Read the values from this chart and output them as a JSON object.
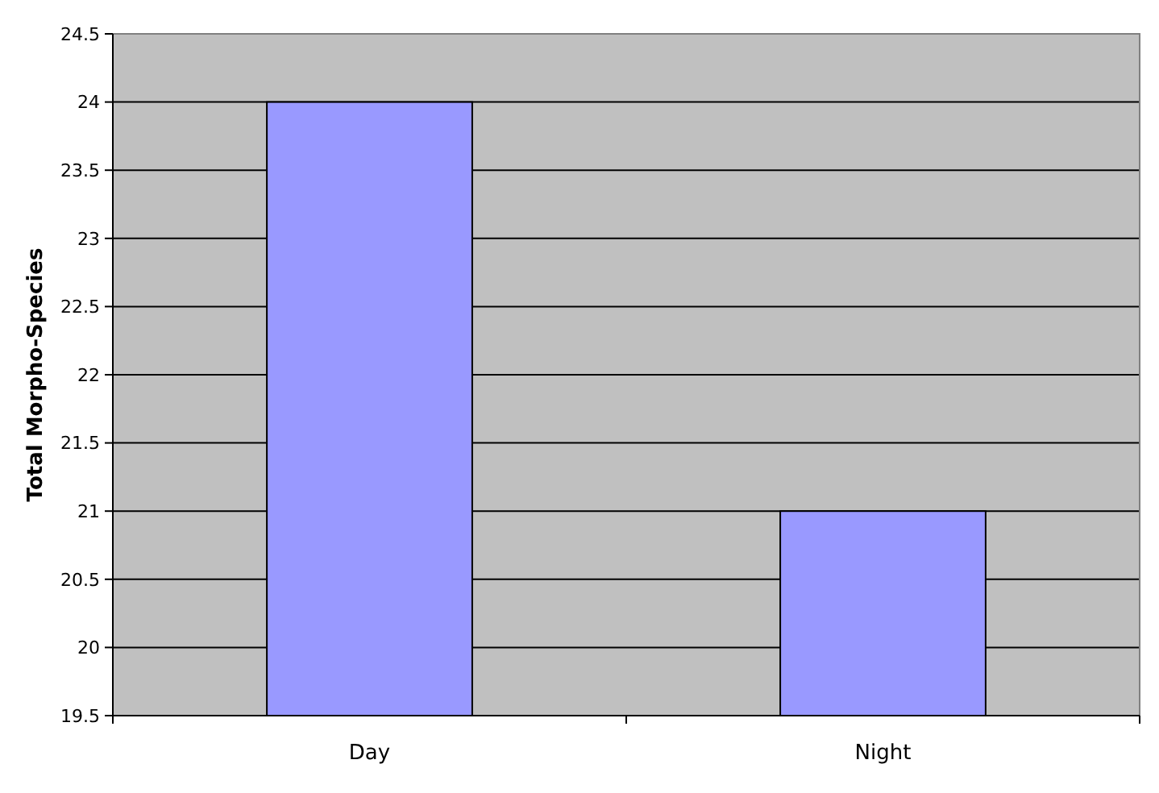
{
  "chart_data": {
    "type": "bar",
    "ylabel": "Total Morpho-Species",
    "categories": [
      "Day",
      "Night"
    ],
    "values": [
      24,
      21
    ],
    "color": "#9999ff",
    "ylim": [
      19.5,
      24.5
    ],
    "yticks": [
      19.5,
      20,
      20.5,
      21,
      21.5,
      22,
      22.5,
      23,
      23.5,
      24,
      24.5
    ],
    "grid": "y"
  }
}
